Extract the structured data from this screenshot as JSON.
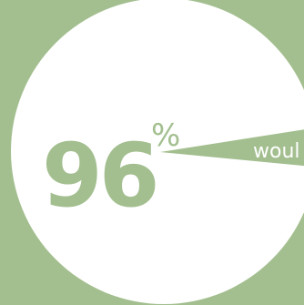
{
  "colors": {
    "background": "#a3bf8f",
    "pie_main": "#ffffff",
    "pie_slice": "#a3bf8f",
    "big_number": "#a3bf8f",
    "slice_label": "#a3bf8f"
  },
  "big_number": {
    "value": "96",
    "symbol": "%"
  },
  "chart_data": {
    "type": "pie",
    "title": "",
    "slices": [
      {
        "value": 96,
        "label": "96%"
      },
      {
        "value": 4,
        "label": "woul"
      }
    ]
  }
}
